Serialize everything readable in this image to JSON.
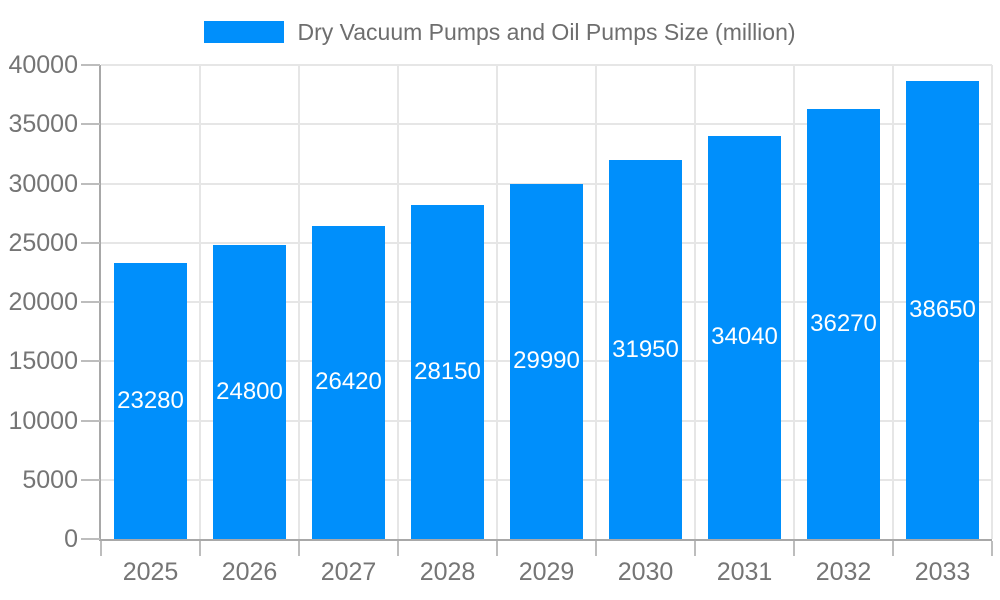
{
  "chart_data": {
    "type": "bar",
    "title": "Dry Vacuum Pumps and Oil Pumps Size (million)",
    "legend": {
      "position": "top",
      "entries": [
        "Dry Vacuum Pumps and Oil Pumps Size (million)"
      ]
    },
    "categories": [
      "2025",
      "2026",
      "2027",
      "2028",
      "2029",
      "2030",
      "2031",
      "2032",
      "2033"
    ],
    "series": [
      {
        "name": "Dry Vacuum Pumps and Oil Pumps Size (million)",
        "values": [
          23280,
          24800,
          26420,
          28150,
          29990,
          31950,
          34040,
          36270,
          38650
        ]
      }
    ],
    "value_labels": "inside-center",
    "xlabel": "",
    "ylabel": "",
    "ylim": [
      0,
      40000
    ],
    "yticks": [
      0,
      5000,
      10000,
      15000,
      20000,
      25000,
      30000,
      35000,
      40000
    ],
    "grid": true,
    "colors": {
      "bar": "#008FFB",
      "value_label": "#ffffff",
      "axis_label": "#757575",
      "legend_label": "#6e6e6e",
      "grid_line": "#e6e6e6",
      "axis_line": "#a8a8a8",
      "tick_mark": "#bdbdbd",
      "background": "#ffffff"
    }
  }
}
